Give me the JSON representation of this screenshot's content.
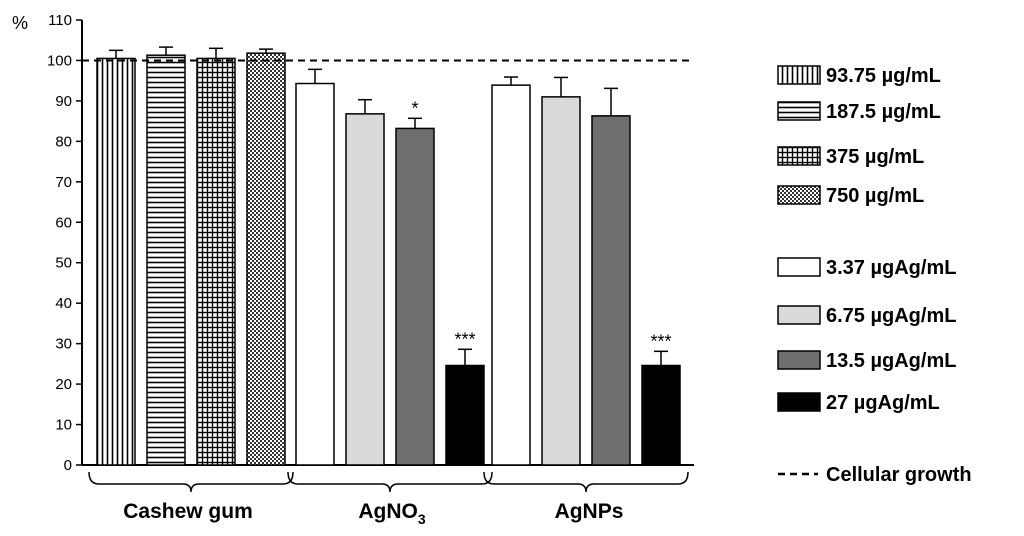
{
  "chart_data": {
    "type": "bar",
    "ylabel": "%",
    "ylim": [
      0,
      110
    ],
    "yticks": [
      0,
      10,
      20,
      30,
      40,
      50,
      60,
      70,
      80,
      90,
      100,
      110
    ],
    "reference_line": {
      "value": 100,
      "style": "dashed",
      "label": "Cellular growth"
    },
    "groups": [
      {
        "label_main": "Cashew gum",
        "label_sub": "",
        "bars": [
          {
            "series": "93.75 µg/mL",
            "value": 100.5,
            "error": 2.0,
            "significance": ""
          },
          {
            "series": "187.5 µg/mL",
            "value": 101.3,
            "error": 2.0,
            "significance": ""
          },
          {
            "series": "375 µg/mL",
            "value": 100.5,
            "error": 2.5,
            "significance": ""
          },
          {
            "series": "750 µg/mL",
            "value": 101.8,
            "error": 1.0,
            "significance": ""
          }
        ]
      },
      {
        "label_main": "AgNO",
        "label_sub": "3",
        "bars": [
          {
            "series": "3.37 µgAg/mL",
            "value": 94.3,
            "error": 3.5,
            "significance": ""
          },
          {
            "series": "6.75 µgAg/mL",
            "value": 86.8,
            "error": 3.5,
            "significance": ""
          },
          {
            "series": "13.5 µgAg/mL",
            "value": 83.2,
            "error": 2.5,
            "significance": "*"
          },
          {
            "series": "27 µgAg/mL",
            "value": 24.6,
            "error": 4.0,
            "significance": "***"
          }
        ]
      },
      {
        "label_main": "AgNPs",
        "label_sub": "",
        "bars": [
          {
            "series": "3.37 µgAg/mL",
            "value": 93.9,
            "error": 2.0,
            "significance": ""
          },
          {
            "series": "6.75 µgAg/mL",
            "value": 91.0,
            "error": 4.8,
            "significance": ""
          },
          {
            "series": "13.5 µgAg/mL",
            "value": 86.3,
            "error": 6.8,
            "significance": ""
          },
          {
            "series": "27 µgAg/mL",
            "value": 24.6,
            "error": 3.5,
            "significance": "***"
          }
        ]
      }
    ],
    "legend": {
      "placement": "right",
      "entries": [
        {
          "label": "93.75 µg/mL",
          "fill": "vlines"
        },
        {
          "label": "187.5 µg/mL",
          "fill": "hlines"
        },
        {
          "label": "375 µg/mL",
          "fill": "grid"
        },
        {
          "label": "750 µg/mL",
          "fill": "checker"
        },
        {
          "label": "3.37 µgAg/mL",
          "fill": "#ffffff"
        },
        {
          "label": "6.75 µgAg/mL",
          "fill": "#d9d9d9"
        },
        {
          "label": "13.5 µgAg/mL",
          "fill": "#6e6e6e"
        },
        {
          "label": "27 µgAg/mL",
          "fill": "#000000"
        }
      ]
    }
  }
}
